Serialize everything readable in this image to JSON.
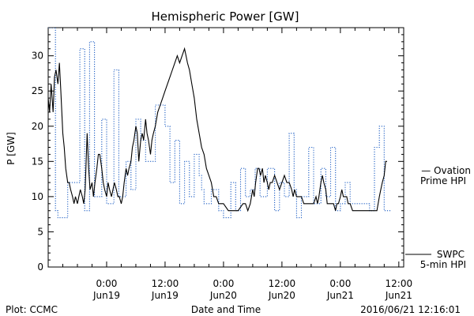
{
  "chart_data": {
    "type": "line",
    "title": "Hemispheric Power [GW]",
    "ylabel": "P [GW]",
    "xlabel": "Date and Time",
    "ylim": [
      0,
      34
    ],
    "yticks": [
      0,
      5,
      10,
      15,
      20,
      25,
      30
    ],
    "xlim_hours_span": 60,
    "xticks": [
      {
        "time": "0:00",
        "date": "Jun19",
        "hour": 12
      },
      {
        "time": "12:00",
        "date": "Jun19",
        "hour": 24
      },
      {
        "time": "0:00",
        "date": "Jun20",
        "hour": 36
      },
      {
        "time": "12:00",
        "date": "Jun20",
        "hour": 48
      },
      {
        "time": "0:00",
        "date": "Jun21",
        "hour": 60
      },
      {
        "time": "12:00",
        "date": "Jun21",
        "hour": 72
      }
    ],
    "series": [
      {
        "name": "SWPC 5-min HPI",
        "legend_lines": [
          "SWPC",
          "5-min HPI"
        ],
        "color": "#000000",
        "style": "solid",
        "points": [
          [
            0.0,
            24
          ],
          [
            0.3,
            22
          ],
          [
            0.6,
            26
          ],
          [
            1.0,
            22
          ],
          [
            1.3,
            27
          ],
          [
            1.6,
            28
          ],
          [
            2.0,
            26
          ],
          [
            2.3,
            29
          ],
          [
            2.6,
            25
          ],
          [
            3.0,
            19
          ],
          [
            3.3,
            17
          ],
          [
            3.6,
            14
          ],
          [
            4.0,
            12
          ],
          [
            4.3,
            12
          ],
          [
            4.6,
            11
          ],
          [
            5.0,
            10
          ],
          [
            5.3,
            9
          ],
          [
            5.6,
            10
          ],
          [
            6.0,
            9
          ],
          [
            6.3,
            10
          ],
          [
            6.6,
            11
          ],
          [
            7.0,
            10
          ],
          [
            7.3,
            9
          ],
          [
            7.6,
            11
          ],
          [
            8.0,
            19
          ],
          [
            8.3,
            14
          ],
          [
            8.6,
            11
          ],
          [
            9.0,
            12
          ],
          [
            9.3,
            10
          ],
          [
            9.6,
            12
          ],
          [
            10.0,
            14
          ],
          [
            10.3,
            16
          ],
          [
            10.6,
            16
          ],
          [
            11.0,
            14
          ],
          [
            11.3,
            12
          ],
          [
            11.6,
            11
          ],
          [
            12.0,
            10
          ],
          [
            12.3,
            12
          ],
          [
            12.6,
            11
          ],
          [
            13.0,
            10
          ],
          [
            13.3,
            11
          ],
          [
            13.6,
            12
          ],
          [
            14.0,
            11
          ],
          [
            14.3,
            10
          ],
          [
            14.6,
            10
          ],
          [
            15.0,
            9
          ],
          [
            15.3,
            10
          ],
          [
            15.6,
            12
          ],
          [
            16.0,
            14
          ],
          [
            16.3,
            13
          ],
          [
            16.6,
            14
          ],
          [
            17.0,
            15
          ],
          [
            17.3,
            17
          ],
          [
            17.6,
            18
          ],
          [
            18.0,
            20
          ],
          [
            18.3,
            19
          ],
          [
            18.6,
            15
          ],
          [
            19.0,
            18
          ],
          [
            19.3,
            19
          ],
          [
            19.6,
            18
          ],
          [
            20.0,
            21
          ],
          [
            20.3,
            19
          ],
          [
            20.6,
            18
          ],
          [
            21.0,
            16
          ],
          [
            21.3,
            18
          ],
          [
            21.6,
            19
          ],
          [
            22.0,
            20
          ],
          [
            22.5,
            22
          ],
          [
            23.0,
            23
          ],
          [
            23.5,
            24
          ],
          [
            24.0,
            25
          ],
          [
            24.5,
            26
          ],
          [
            25.0,
            27
          ],
          [
            25.5,
            28
          ],
          [
            26.0,
            29
          ],
          [
            26.5,
            30
          ],
          [
            27.0,
            29
          ],
          [
            27.5,
            30
          ],
          [
            28.0,
            31
          ],
          [
            28.3,
            30
          ],
          [
            28.6,
            29
          ],
          [
            29.0,
            28
          ],
          [
            29.5,
            26
          ],
          [
            30.0,
            24
          ],
          [
            30.5,
            21
          ],
          [
            31.0,
            19
          ],
          [
            31.5,
            17
          ],
          [
            32.0,
            16
          ],
          [
            32.5,
            14
          ],
          [
            33.0,
            13
          ],
          [
            33.5,
            12
          ],
          [
            34.0,
            10
          ],
          [
            34.5,
            10
          ],
          [
            35.0,
            9
          ],
          [
            35.5,
            9
          ],
          [
            36.0,
            9
          ],
          [
            37.0,
            8
          ],
          [
            38.0,
            8
          ],
          [
            39.0,
            8
          ],
          [
            40.0,
            9
          ],
          [
            40.5,
            9
          ],
          [
            41.0,
            8
          ],
          [
            41.5,
            9
          ],
          [
            42.0,
            11
          ],
          [
            42.3,
            10
          ],
          [
            42.6,
            12
          ],
          [
            43.0,
            14
          ],
          [
            43.3,
            14
          ],
          [
            43.6,
            13
          ],
          [
            44.0,
            14
          ],
          [
            44.3,
            12
          ],
          [
            44.6,
            13
          ],
          [
            45.0,
            12
          ],
          [
            45.3,
            11
          ],
          [
            45.6,
            12
          ],
          [
            46.0,
            12
          ],
          [
            46.5,
            13
          ],
          [
            47.0,
            12
          ],
          [
            47.5,
            11
          ],
          [
            48.0,
            12
          ],
          [
            48.5,
            13
          ],
          [
            49.0,
            12
          ],
          [
            49.5,
            12
          ],
          [
            50.0,
            11
          ],
          [
            50.3,
            10
          ],
          [
            50.6,
            11
          ],
          [
            51.0,
            10
          ],
          [
            51.5,
            10
          ],
          [
            52.0,
            10
          ],
          [
            52.5,
            9
          ],
          [
            53.0,
            9
          ],
          [
            53.5,
            9
          ],
          [
            54.0,
            9
          ],
          [
            54.5,
            9
          ],
          [
            55.0,
            10
          ],
          [
            55.3,
            9
          ],
          [
            55.6,
            10
          ],
          [
            56.0,
            12
          ],
          [
            56.3,
            13
          ],
          [
            56.6,
            12
          ],
          [
            57.0,
            11
          ],
          [
            57.3,
            9
          ],
          [
            57.6,
            9
          ],
          [
            58.0,
            9
          ],
          [
            58.3,
            9
          ],
          [
            58.6,
            9
          ],
          [
            59.0,
            8
          ],
          [
            59.3,
            9
          ],
          [
            59.6,
            9
          ],
          [
            60.0,
            10
          ],
          [
            60.3,
            11
          ],
          [
            60.6,
            10
          ],
          [
            61.0,
            10
          ],
          [
            61.3,
            10
          ],
          [
            61.6,
            9
          ],
          [
            62.0,
            9
          ],
          [
            62.5,
            8
          ],
          [
            63.0,
            8
          ],
          [
            64.0,
            8
          ],
          [
            65.0,
            8
          ],
          [
            66.0,
            8
          ],
          [
            67.0,
            8
          ],
          [
            67.5,
            8
          ],
          [
            68.0,
            10
          ],
          [
            68.3,
            11
          ],
          [
            68.6,
            12
          ],
          [
            69.0,
            13
          ],
          [
            69.3,
            15
          ],
          [
            69.6,
            15
          ]
        ]
      },
      {
        "name": "Ovation Prime HPI",
        "legend_lines": [
          "— Ovation",
          "Prime HPI"
        ],
        "color": "#1f5fc4",
        "style": "dotted",
        "steps": [
          [
            0.0,
            34
          ],
          [
            1.5,
            8
          ],
          [
            2.0,
            7
          ],
          [
            4.0,
            12
          ],
          [
            6.5,
            31
          ],
          [
            7.5,
            8
          ],
          [
            8.5,
            32
          ],
          [
            9.5,
            10
          ],
          [
            11.0,
            21
          ],
          [
            12.0,
            9
          ],
          [
            13.5,
            28
          ],
          [
            14.5,
            10
          ],
          [
            16.0,
            15
          ],
          [
            17.0,
            11
          ],
          [
            18.0,
            21
          ],
          [
            19.0,
            18
          ],
          [
            20.0,
            15
          ],
          [
            22.0,
            23
          ],
          [
            24.0,
            20
          ],
          [
            25.0,
            12
          ],
          [
            26.0,
            18
          ],
          [
            27.0,
            9
          ],
          [
            28.0,
            15
          ],
          [
            29.0,
            10
          ],
          [
            30.0,
            16
          ],
          [
            31.0,
            13
          ],
          [
            31.5,
            11
          ],
          [
            32.0,
            9
          ],
          [
            33.5,
            11
          ],
          [
            35.0,
            8
          ],
          [
            36.0,
            7
          ],
          [
            37.5,
            12
          ],
          [
            38.5,
            8
          ],
          [
            39.5,
            14
          ],
          [
            40.5,
            10
          ],
          [
            41.5,
            11
          ],
          [
            42.5,
            14
          ],
          [
            43.5,
            10
          ],
          [
            45.0,
            14
          ],
          [
            46.5,
            8
          ],
          [
            47.5,
            12
          ],
          [
            48.5,
            10
          ],
          [
            49.5,
            19
          ],
          [
            50.5,
            11
          ],
          [
            51.0,
            7
          ],
          [
            52.0,
            10
          ],
          [
            53.5,
            17
          ],
          [
            54.5,
            9
          ],
          [
            56.0,
            14
          ],
          [
            57.0,
            10
          ],
          [
            58.0,
            17
          ],
          [
            59.0,
            8
          ],
          [
            60.0,
            9
          ],
          [
            61.0,
            12
          ],
          [
            62.0,
            9
          ],
          [
            66.0,
            8
          ],
          [
            67.0,
            17
          ],
          [
            68.0,
            20
          ],
          [
            69.0,
            8
          ],
          [
            70.0,
            8
          ]
        ]
      }
    ]
  },
  "footer": {
    "plot_credit": "Plot: CCMC",
    "timestamp": "2016/06/21 12:16:01"
  }
}
